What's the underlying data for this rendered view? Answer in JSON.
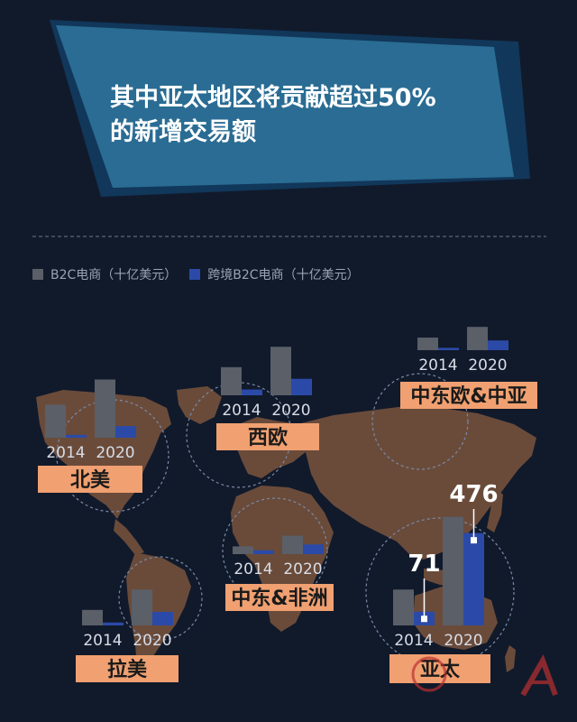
{
  "title": {
    "line1": "其中亚太地区将贡献超过50%",
    "line2": "的新增交易额"
  },
  "legend": {
    "b2c_label": "B2C电商（十亿美元）",
    "cross_label": "跨境B2C电商（十亿美元）"
  },
  "colors": {
    "b2c": "#5a5f68",
    "cross": "#2b4aa8",
    "region_label_bg": "#f0a071",
    "banner": "#2a6c93",
    "banner_dark": "#11375a"
  },
  "chart_data": [
    {
      "type": "bar",
      "region": "北美",
      "categories": [
        "2014",
        "2020"
      ],
      "series": [
        {
          "name": "B2C电商（十亿美元）",
          "values": [
            170,
            300
          ]
        },
        {
          "name": "跨境B2C电商（十亿美元）",
          "values": [
            15,
            60
          ]
        }
      ]
    },
    {
      "type": "bar",
      "region": "西欧",
      "categories": [
        "2014",
        "2020"
      ],
      "series": [
        {
          "name": "B2C电商（十亿美元）",
          "values": [
            145,
            250
          ]
        },
        {
          "name": "跨境B2C电商（十亿美元）",
          "values": [
            30,
            85
          ]
        }
      ]
    },
    {
      "type": "bar",
      "region": "中东欧&中亚",
      "categories": [
        "2014",
        "2020"
      ],
      "series": [
        {
          "name": "B2C电商（十亿美元）",
          "values": [
            65,
            120
          ]
        },
        {
          "name": "跨境B2C电商（十亿美元）",
          "values": [
            12,
            50
          ]
        }
      ]
    },
    {
      "type": "bar",
      "region": "中东&非洲",
      "categories": [
        "2014",
        "2020"
      ],
      "series": [
        {
          "name": "B2C电商（十亿美元）",
          "values": [
            40,
            95
          ]
        },
        {
          "name": "跨境B2C电商（十亿美元）",
          "values": [
            20,
            50
          ]
        }
      ]
    },
    {
      "type": "bar",
      "region": "拉美",
      "categories": [
        "2014",
        "2020"
      ],
      "series": [
        {
          "name": "B2C电商（十亿美元）",
          "values": [
            80,
            185
          ]
        },
        {
          "name": "跨境B2C电商（十亿美元）",
          "values": [
            15,
            70
          ]
        }
      ]
    },
    {
      "type": "bar",
      "region": "亚太",
      "categories": [
        "2014",
        "2020"
      ],
      "series": [
        {
          "name": "B2C电商（十亿美元）",
          "values": [
            185,
            560
          ]
        },
        {
          "name": "跨境B2C电商（十亿美元）",
          "values": [
            71,
            476
          ]
        }
      ],
      "annotations": [
        "71",
        "476"
      ]
    }
  ]
}
